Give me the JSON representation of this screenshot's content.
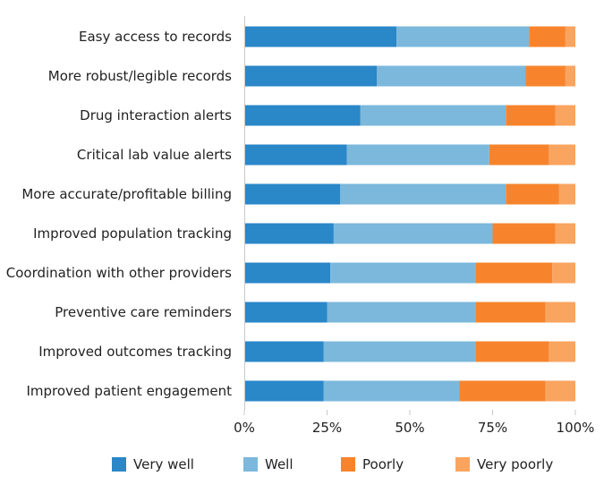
{
  "chart_data": {
    "type": "bar",
    "orientation": "horizontal",
    "stacked": true,
    "title": "",
    "xlabel": "",
    "ylabel": "",
    "xlim": [
      0,
      100
    ],
    "categories": [
      "Easy access to records",
      "More robust/legible records",
      "Drug interaction alerts",
      "Critical lab value alerts",
      "More accurate/profitable billing",
      "Improved population tracking",
      "Coordination with other providers",
      "Preventive care reminders",
      "Improved outcomes tracking",
      "Improved patient engagement"
    ],
    "series": [
      {
        "name": "Very well",
        "color": "#2a87c8",
        "values": [
          46,
          40,
          35,
          31,
          29,
          27,
          26,
          25,
          24,
          24
        ]
      },
      {
        "name": "Well",
        "color": "#7bb8dc",
        "values": [
          40,
          45,
          44,
          43,
          50,
          48,
          44,
          45,
          46,
          41
        ]
      },
      {
        "name": "Poorly",
        "color": "#f7842d",
        "values": [
          11,
          12,
          15,
          18,
          16,
          19,
          23,
          21,
          22,
          26
        ]
      },
      {
        "name": "Very poorly",
        "color": "#f9a45f",
        "values": [
          3,
          3,
          6,
          8,
          5,
          6,
          7,
          9,
          8,
          9
        ]
      }
    ],
    "x_ticks": [
      {
        "value": 0,
        "label": "0%"
      },
      {
        "value": 25,
        "label": "25%"
      },
      {
        "value": 50,
        "label": "50%"
      },
      {
        "value": 75,
        "label": "75%"
      },
      {
        "value": 100,
        "label": "100%"
      }
    ],
    "legend_position": "bottom",
    "grid": false
  }
}
